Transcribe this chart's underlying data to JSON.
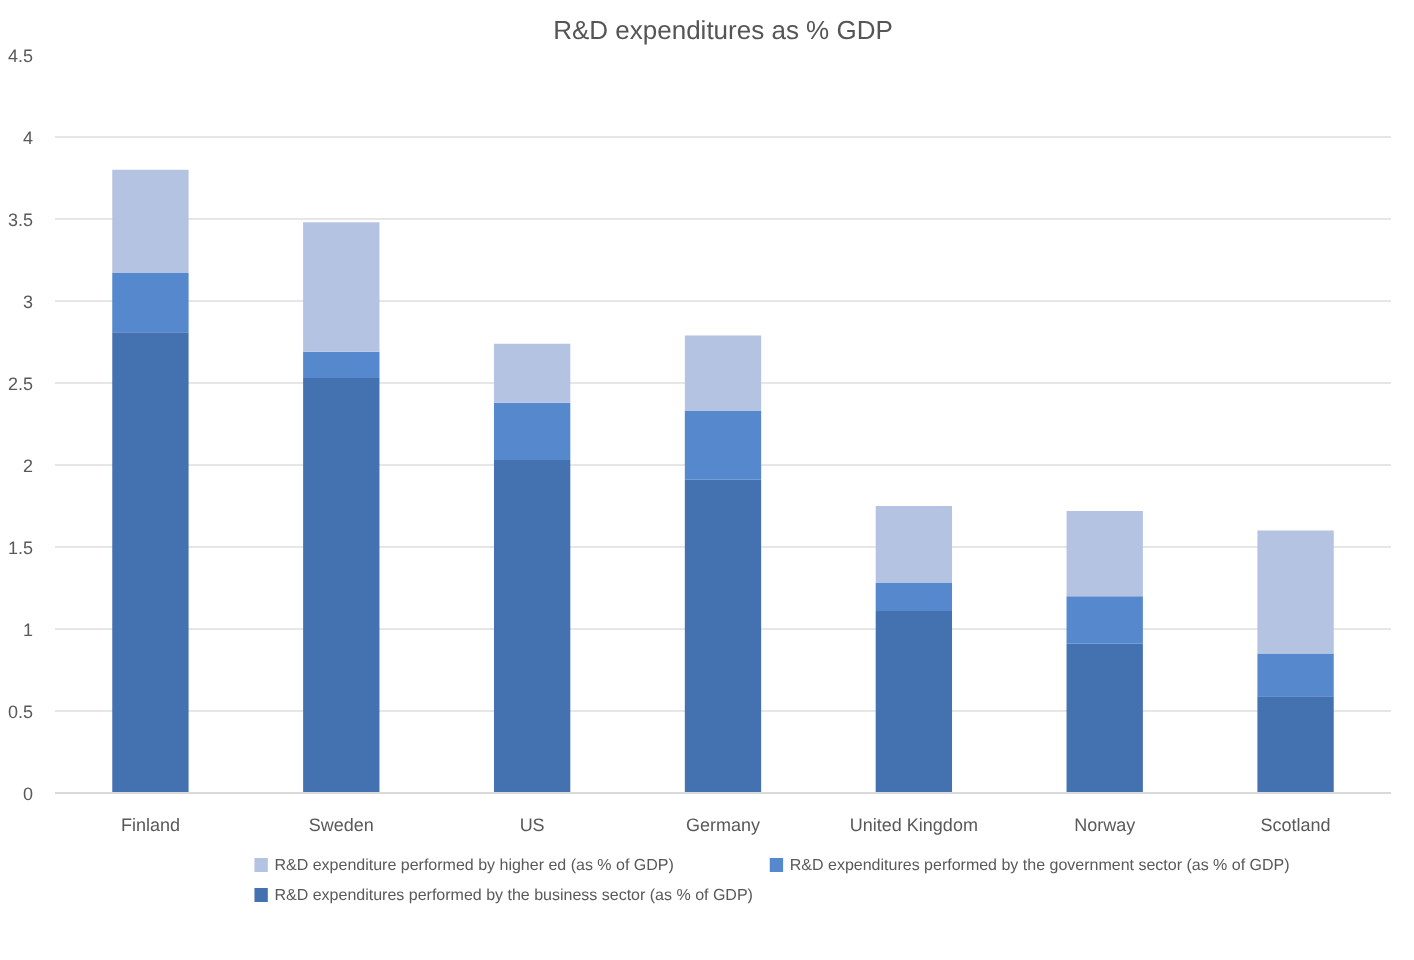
{
  "chart_data": {
    "type": "bar",
    "title": "R&D expenditures as % GDP",
    "stacked": true,
    "categories": [
      "Finland",
      "Sweden",
      "US",
      "Germany",
      "United Kingdom",
      "Norway",
      "Scotland"
    ],
    "series": [
      {
        "name": "R&D expenditures performed by the business sector (as % of GDP)",
        "color": "#4472b0",
        "values": [
          2.81,
          2.53,
          2.03,
          1.91,
          1.11,
          0.91,
          0.59
        ]
      },
      {
        "name": "R&D expenditures performed by the government sector (as % of GDP)",
        "color": "#5588cc",
        "values": [
          0.36,
          0.16,
          0.35,
          0.42,
          0.17,
          0.29,
          0.26
        ]
      },
      {
        "name": "R&D expenditure performed by higher ed (as % of GDP)",
        "color": "#b4c3e2",
        "values": [
          0.63,
          0.79,
          0.36,
          0.46,
          0.47,
          0.52,
          0.75
        ]
      }
    ],
    "ylim": [
      0,
      4.5
    ],
    "yticks": [
      0,
      0.5,
      1,
      1.5,
      2,
      2.5,
      3,
      3.5,
      4,
      4.5
    ],
    "grid": "y",
    "legend": "bottom"
  }
}
